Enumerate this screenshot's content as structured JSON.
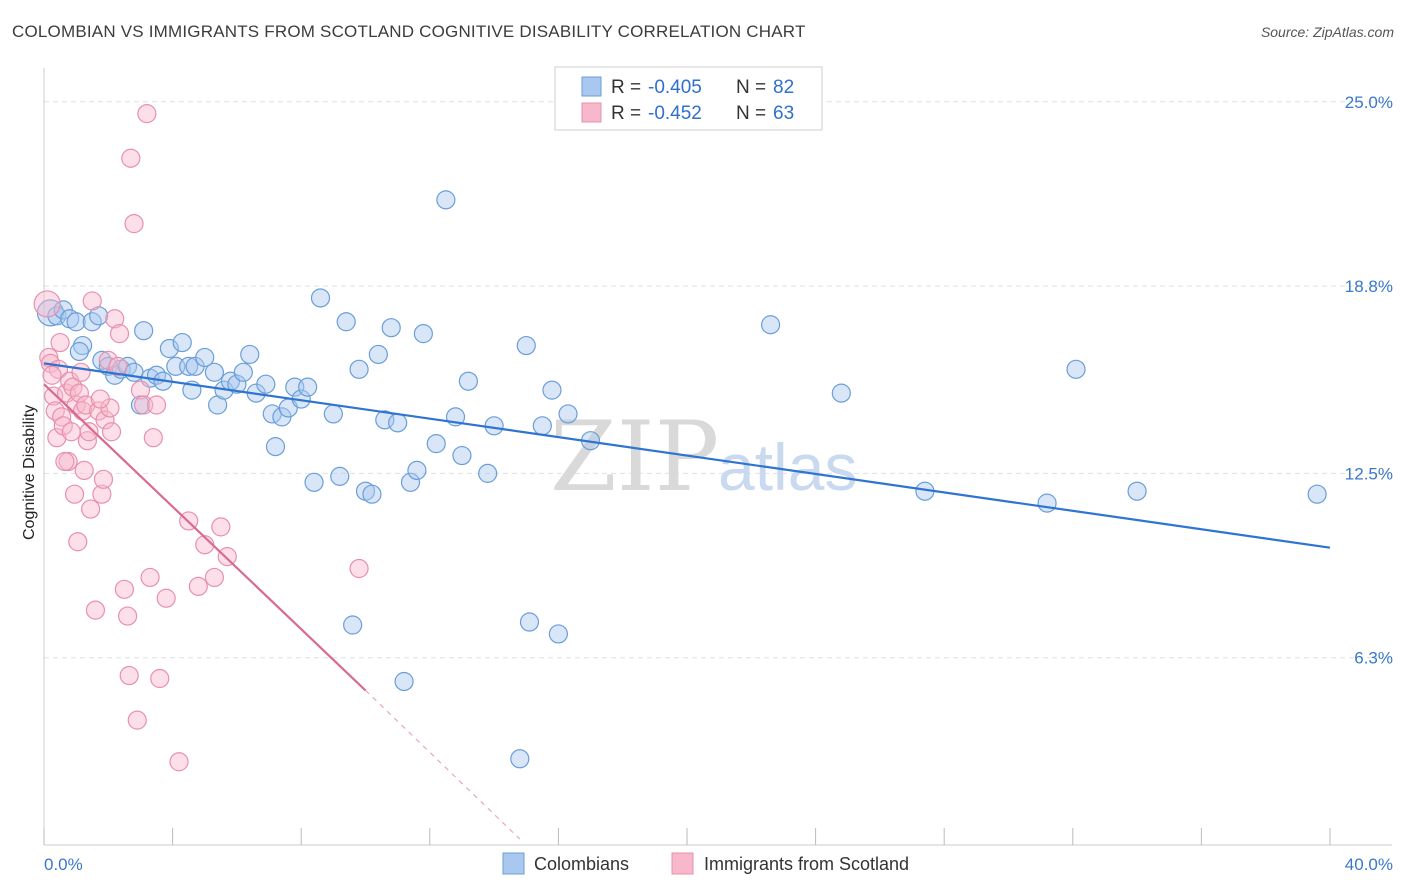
{
  "header": {
    "title": "COLOMBIAN VS IMMIGRANTS FROM SCOTLAND COGNITIVE DISABILITY CORRELATION CHART",
    "source": "Source: ZipAtlas.com"
  },
  "watermark": {
    "zip": "ZIP",
    "atlas": "atlas"
  },
  "legend": {
    "r_label": "R =",
    "n_label": "N =",
    "rows": [
      {
        "r": "-0.405",
        "n": "82",
        "color": "#a8c8f0"
      },
      {
        "r": "-0.452",
        "n": "63",
        "color": "#f8b8cc"
      }
    ]
  },
  "chart_data": {
    "type": "scatter",
    "title": "COLOMBIAN VS IMMIGRANTS FROM SCOTLAND COGNITIVE DISABILITY CORRELATION CHART",
    "xlabel": "",
    "ylabel": "Cognitive Disability",
    "xlim": [
      0,
      40
    ],
    "ylim": [
      0,
      25.9
    ],
    "x_tick_labels": [
      "0.0%",
      "40.0%"
    ],
    "y_ticks": [
      6.3,
      12.5,
      18.8,
      25.0
    ],
    "y_tick_labels": [
      "6.3%",
      "12.5%",
      "18.8%",
      "25.0%"
    ],
    "grid": true,
    "legend_position": "top-center",
    "series": [
      {
        "name": "Colombians",
        "color": "#a8c8f0",
        "stroke": "#6a9ed8",
        "line_color": "#2f74d0",
        "trend": {
          "x0": 0,
          "y0": 16.2,
          "x1": 40,
          "y1": 10.0
        },
        "points": [
          [
            0.2,
            17.9
          ],
          [
            0.4,
            17.8
          ],
          [
            0.6,
            18.0
          ],
          [
            0.8,
            17.7
          ],
          [
            1.0,
            17.6
          ],
          [
            1.2,
            16.8
          ],
          [
            1.1,
            16.6
          ],
          [
            1.5,
            17.6
          ],
          [
            1.7,
            17.8
          ],
          [
            1.8,
            16.3
          ],
          [
            2.0,
            16.1
          ],
          [
            2.2,
            15.8
          ],
          [
            2.4,
            16.0
          ],
          [
            2.6,
            16.1
          ],
          [
            2.8,
            15.9
          ],
          [
            3.0,
            14.8
          ],
          [
            3.1,
            17.3
          ],
          [
            3.3,
            15.7
          ],
          [
            3.5,
            15.8
          ],
          [
            3.7,
            15.6
          ],
          [
            3.9,
            16.7
          ],
          [
            4.1,
            16.1
          ],
          [
            4.3,
            16.9
          ],
          [
            4.5,
            16.1
          ],
          [
            4.6,
            15.3
          ],
          [
            4.7,
            16.1
          ],
          [
            5.0,
            16.4
          ],
          [
            5.3,
            15.9
          ],
          [
            5.4,
            14.8
          ],
          [
            5.6,
            15.3
          ],
          [
            5.8,
            15.6
          ],
          [
            6.0,
            15.5
          ],
          [
            6.2,
            15.9
          ],
          [
            6.4,
            16.5
          ],
          [
            6.6,
            15.2
          ],
          [
            6.9,
            15.5
          ],
          [
            7.1,
            14.5
          ],
          [
            7.2,
            13.4
          ],
          [
            7.4,
            14.4
          ],
          [
            7.6,
            14.7
          ],
          [
            7.8,
            15.4
          ],
          [
            8.0,
            15.0
          ],
          [
            8.2,
            15.4
          ],
          [
            8.4,
            12.2
          ],
          [
            8.6,
            18.4
          ],
          [
            9.0,
            14.5
          ],
          [
            9.2,
            12.4
          ],
          [
            9.4,
            17.6
          ],
          [
            9.6,
            7.4
          ],
          [
            9.8,
            16.0
          ],
          [
            10.0,
            11.9
          ],
          [
            10.2,
            11.8
          ],
          [
            10.4,
            16.5
          ],
          [
            10.6,
            14.3
          ],
          [
            10.8,
            17.4
          ],
          [
            11.0,
            14.2
          ],
          [
            11.2,
            5.5
          ],
          [
            11.4,
            12.2
          ],
          [
            11.6,
            12.6
          ],
          [
            11.8,
            17.2
          ],
          [
            12.2,
            13.5
          ],
          [
            12.5,
            21.7
          ],
          [
            12.8,
            14.4
          ],
          [
            13.0,
            13.1
          ],
          [
            13.2,
            15.6
          ],
          [
            13.8,
            12.5
          ],
          [
            14.0,
            14.1
          ],
          [
            14.8,
            2.9
          ],
          [
            15.0,
            16.8
          ],
          [
            15.1,
            7.5
          ],
          [
            15.5,
            14.1
          ],
          [
            15.8,
            15.3
          ],
          [
            16.0,
            7.1
          ],
          [
            16.3,
            14.5
          ],
          [
            17.0,
            13.6
          ],
          [
            22.6,
            17.5
          ],
          [
            24.8,
            15.2
          ],
          [
            27.4,
            11.9
          ],
          [
            31.2,
            11.5
          ],
          [
            32.1,
            16.0
          ],
          [
            34.0,
            11.9
          ],
          [
            39.6,
            11.8
          ]
        ]
      },
      {
        "name": "Immigrants from Scotland",
        "color": "#f8b8cc",
        "stroke": "#e890ad",
        "line_color": "#d96a93",
        "trend": {
          "x0": 0,
          "y0": 15.5,
          "x1": 10.0,
          "y1": 5.2
        },
        "trend_dashed_to": {
          "x": 14.8,
          "y": 0.2
        },
        "points": [
          [
            0.1,
            18.2
          ],
          [
            0.15,
            16.4
          ],
          [
            0.2,
            16.2
          ],
          [
            0.3,
            15.1
          ],
          [
            0.35,
            14.6
          ],
          [
            0.4,
            13.7
          ],
          [
            0.45,
            16.0
          ],
          [
            0.5,
            16.9
          ],
          [
            0.55,
            14.4
          ],
          [
            0.6,
            14.1
          ],
          [
            0.7,
            15.2
          ],
          [
            0.75,
            12.9
          ],
          [
            0.8,
            15.6
          ],
          [
            0.85,
            13.9
          ],
          [
            0.9,
            15.4
          ],
          [
            0.95,
            11.8
          ],
          [
            1.0,
            14.8
          ],
          [
            1.05,
            10.2
          ],
          [
            1.1,
            15.2
          ],
          [
            1.15,
            15.9
          ],
          [
            1.2,
            14.6
          ],
          [
            1.25,
            12.6
          ],
          [
            1.3,
            14.8
          ],
          [
            1.35,
            13.6
          ],
          [
            1.4,
            13.9
          ],
          [
            1.45,
            11.3
          ],
          [
            1.5,
            18.3
          ],
          [
            1.6,
            7.9
          ],
          [
            1.7,
            14.6
          ],
          [
            1.8,
            11.8
          ],
          [
            1.85,
            12.3
          ],
          [
            1.9,
            14.3
          ],
          [
            2.0,
            16.3
          ],
          [
            2.05,
            14.7
          ],
          [
            2.1,
            13.9
          ],
          [
            2.2,
            17.7
          ],
          [
            2.3,
            16.1
          ],
          [
            2.35,
            17.2
          ],
          [
            2.5,
            8.6
          ],
          [
            2.6,
            7.7
          ],
          [
            2.65,
            5.7
          ],
          [
            2.7,
            23.1
          ],
          [
            2.8,
            20.9
          ],
          [
            2.9,
            4.2
          ],
          [
            3.0,
            15.3
          ],
          [
            3.1,
            14.8
          ],
          [
            3.2,
            24.6
          ],
          [
            3.3,
            9.0
          ],
          [
            3.4,
            13.7
          ],
          [
            3.5,
            14.8
          ],
          [
            3.6,
            5.6
          ],
          [
            3.8,
            8.3
          ],
          [
            4.2,
            2.8
          ],
          [
            4.5,
            10.9
          ],
          [
            4.8,
            8.7
          ],
          [
            5.0,
            10.1
          ],
          [
            5.3,
            9.0
          ],
          [
            5.5,
            10.7
          ],
          [
            5.7,
            9.7
          ],
          [
            9.8,
            9.3
          ],
          [
            0.25,
            15.8
          ],
          [
            0.65,
            12.9
          ],
          [
            1.75,
            15.0
          ]
        ]
      }
    ]
  },
  "bottom_legend": [
    "Colombians",
    "Immigrants from Scotland"
  ]
}
